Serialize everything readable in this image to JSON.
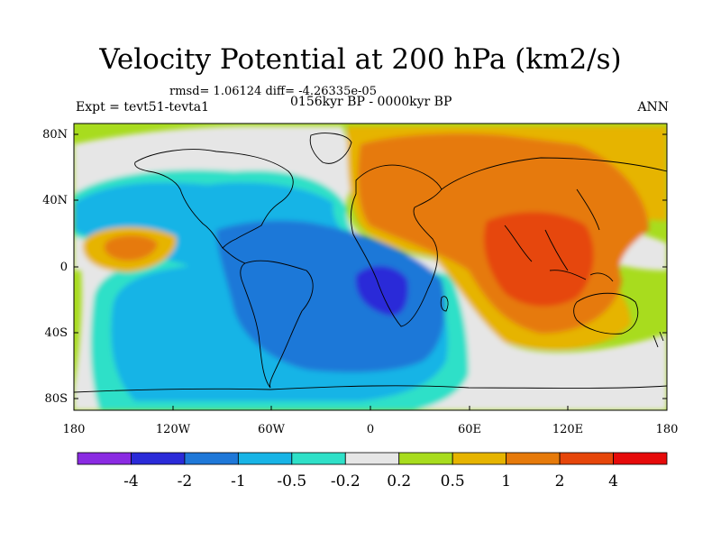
{
  "title": "Velocity Potential at 200 hPa (km2/s)",
  "stats": "rmsd= 1.06124 diff= -4.26335e-05",
  "experiment": "Expt = tevt51-tevta1",
  "period": "0156kyr BP - 0000kyr BP",
  "season": "ANN",
  "lat_ticks": [
    "80N",
    "40N",
    "0",
    "40S",
    "80S"
  ],
  "lon_ticks": [
    "180",
    "120W",
    "60W",
    "0",
    "60E",
    "120E",
    "180"
  ],
  "colorbar": {
    "colors": [
      "#8a2be2",
      "#2b2bd8",
      "#1f78d8",
      "#18b4e6",
      "#2fe0c8",
      "#e6e6e6",
      "#a8dc1e",
      "#e6b400",
      "#e67a0a",
      "#e6460a",
      "#e60a0a"
    ],
    "labels": [
      "-4",
      "-2",
      "-1",
      "-0.5",
      "-0.2",
      "0.2",
      "0.5",
      "1",
      "2",
      "4"
    ]
  }
}
